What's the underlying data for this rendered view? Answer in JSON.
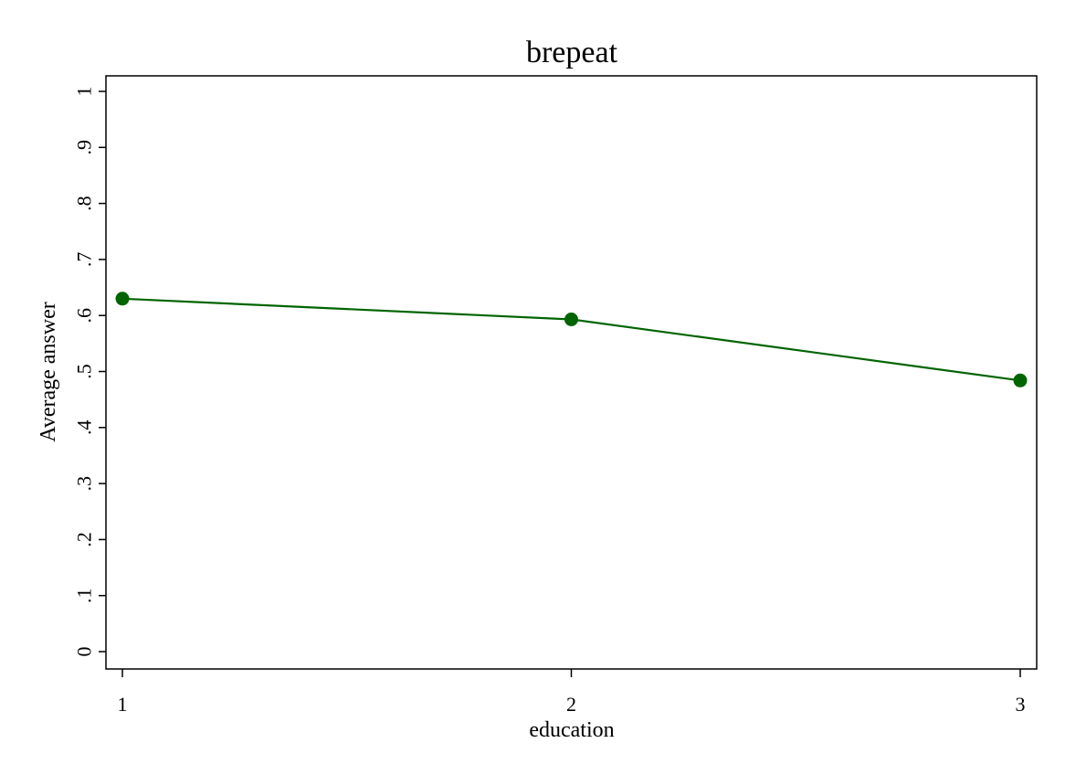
{
  "chart_data": {
    "type": "line",
    "title": "brepeat",
    "xlabel": "education",
    "ylabel": "Average answer",
    "x": [
      1,
      2,
      3
    ],
    "x_tick_labels": [
      "1",
      "2",
      "3"
    ],
    "y_ticks": [
      0,
      0.1,
      0.2,
      0.3,
      0.4,
      0.5,
      0.6,
      0.7,
      0.8,
      0.9,
      1
    ],
    "y_tick_labels": [
      "0",
      ".1",
      ".2",
      ".3",
      ".4",
      ".5",
      ".6",
      ".7",
      ".8",
      ".9",
      "1"
    ],
    "xlim": [
      1,
      3
    ],
    "ylim": [
      0,
      1
    ],
    "grid": false,
    "legend": "none",
    "series": [
      {
        "values": [
          0.63,
          0.593,
          0.484
        ],
        "color": "#006400",
        "marker": "circle"
      }
    ]
  }
}
